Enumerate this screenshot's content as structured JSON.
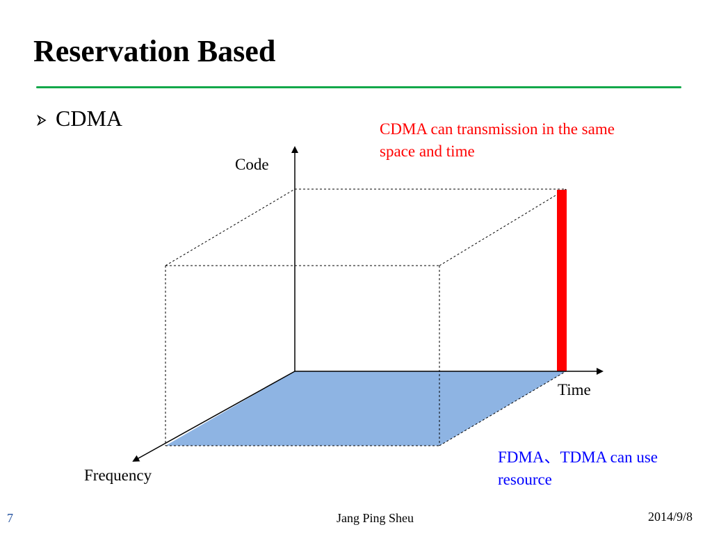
{
  "slide": {
    "title": "Reservation Based",
    "bullet": "CDMA",
    "notes": {
      "cdma": "CDMA can transmission in the same space and time",
      "fdma_tdma": "FDMA、TDMA  can use resource"
    },
    "axes": {
      "code": "Code",
      "time": "Time",
      "frequency": "Frequency"
    },
    "colors": {
      "title_rule": "#13a84a",
      "cdma_note": "#ff0000",
      "fdma_note": "#0000ff",
      "plane_fill": "#8eb4e3",
      "cdma_bar": "#ff0000"
    },
    "footer": {
      "page_number": "7",
      "author": "Jang Ping Sheu",
      "date": "2014/9/8"
    }
  }
}
